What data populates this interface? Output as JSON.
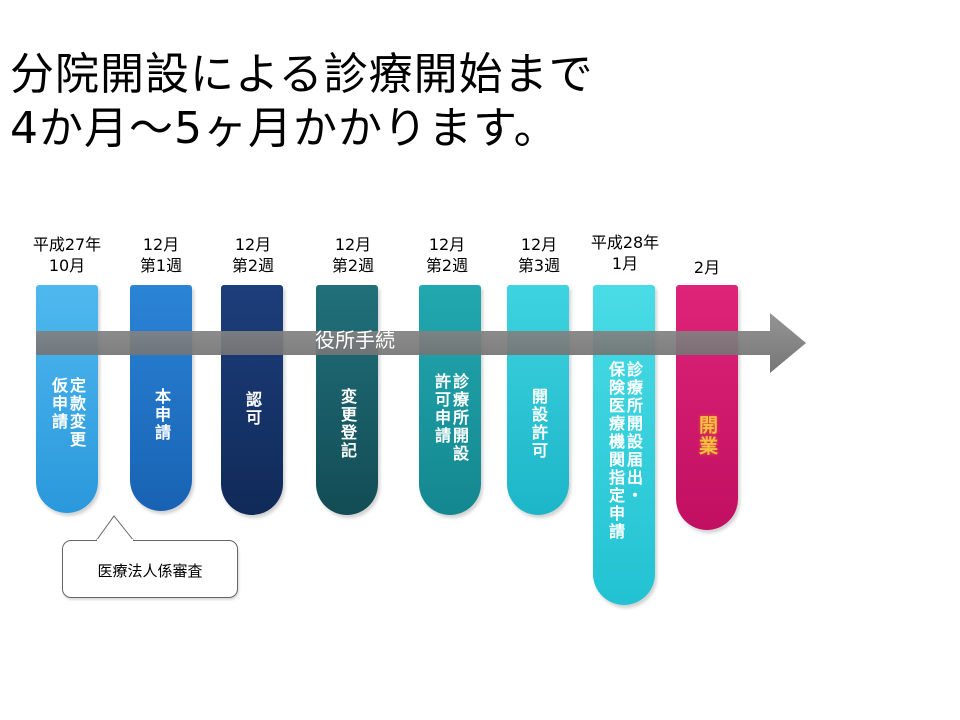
{
  "title": {
    "line1": "分院開設による診療開始まで",
    "line2": "4か月～5ヶ月かかります。"
  },
  "arrow_label": "役所手続",
  "callout": "医療法人係審査",
  "steps": [
    {
      "date": [
        "平成27年",
        "10月"
      ],
      "label": [
        "定款変更",
        "仮申請"
      ],
      "color": "#36a7e6"
    },
    {
      "date": [
        "12月",
        "第1週"
      ],
      "label": [
        "本申請"
      ],
      "color": "#1e73c9"
    },
    {
      "date": [
        "12月",
        "第2週"
      ],
      "label": [
        "認可"
      ],
      "color": "#17336a"
    },
    {
      "date": [
        "12月",
        "第2週"
      ],
      "label": [
        "変更登記"
      ],
      "color": "#1b5e68"
    },
    {
      "date": [
        "12月",
        "第2週"
      ],
      "label": [
        "診療所開設",
        "許可申請"
      ],
      "color": "#1a9aa3"
    },
    {
      "date": [
        "12月",
        "第3週"
      ],
      "label": [
        "開設許可"
      ],
      "color": "#27c6d6"
    },
    {
      "date": [
        "平成28年",
        "1月"
      ],
      "label": [
        "診療所開設届出・",
        "保険医療機関指定申請"
      ],
      "color": "#3cd4e0"
    },
    {
      "date": [
        "2月"
      ],
      "label": [
        "開業"
      ],
      "color": "#d4176f"
    }
  ]
}
